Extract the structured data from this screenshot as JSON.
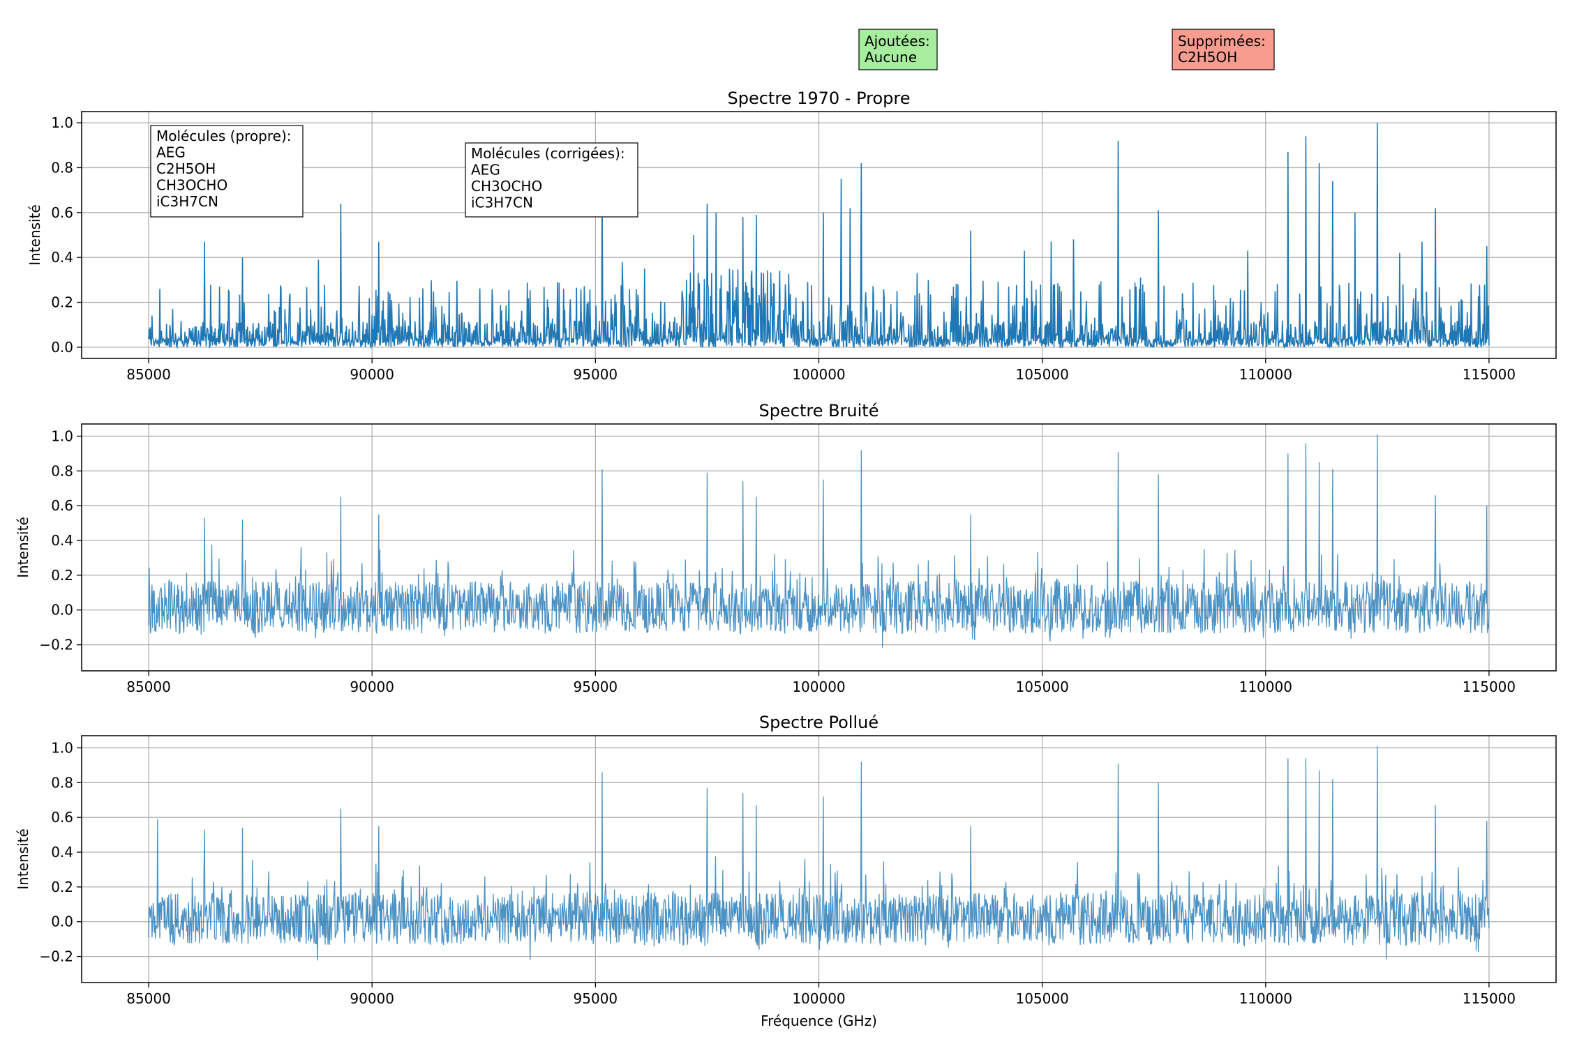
{
  "legend_boxes": [
    {
      "lines": [
        "Ajoutées:",
        "Aucune"
      ],
      "color": "#a6ee9e"
    },
    {
      "lines": [
        "Supprimées:",
        "C2H5OH"
      ],
      "color": "#f79c8f"
    }
  ],
  "chart_data": [
    {
      "type": "line",
      "title": "Spectre 1970 - Propre",
      "xlabel": "",
      "ylabel": "Intensité",
      "xlim": [
        83500,
        116500
      ],
      "ylim": [
        -0.05,
        1.05
      ],
      "xticks": [
        85000,
        90000,
        95000,
        100000,
        105000,
        110000,
        115000
      ],
      "yticks": [
        0.0,
        0.2,
        0.4,
        0.6,
        0.8,
        1.0
      ],
      "ytick_labels": [
        "0.0",
        "0.2",
        "0.4",
        "0.6",
        "0.8",
        "1.0"
      ],
      "grid": true,
      "series_color": "#1f77b4",
      "baseline": 0.0,
      "noise_amp": 0.0,
      "annotations": [
        {
          "lines": [
            "Molécules (propre):",
            "AEG",
            "C2H5OH",
            "CH3OCHO",
            "iC3H7CN"
          ]
        },
        {
          "lines": [
            "Molécules (corrigées):",
            "AEG",
            "CH3OCHO",
            "iC3H7CN"
          ]
        }
      ],
      "peaks": [
        [
          85250,
          0.26
        ],
        [
          86250,
          0.47
        ],
        [
          87100,
          0.4
        ],
        [
          88800,
          0.39
        ],
        [
          89300,
          0.64
        ],
        [
          90150,
          0.47
        ],
        [
          95150,
          0.74
        ],
        [
          95600,
          0.38
        ],
        [
          96100,
          0.35
        ],
        [
          97200,
          0.5
        ],
        [
          97500,
          0.64
        ],
        [
          97700,
          0.6
        ],
        [
          98300,
          0.58
        ],
        [
          98600,
          0.59
        ],
        [
          100100,
          0.6
        ],
        [
          100500,
          0.75
        ],
        [
          100700,
          0.62
        ],
        [
          100950,
          0.82
        ],
        [
          102200,
          0.33
        ],
        [
          103400,
          0.52
        ],
        [
          104600,
          0.43
        ],
        [
          105200,
          0.47
        ],
        [
          105700,
          0.48
        ],
        [
          106700,
          0.92
        ],
        [
          107200,
          0.31
        ],
        [
          107600,
          0.61
        ],
        [
          109600,
          0.43
        ],
        [
          110500,
          0.87
        ],
        [
          110900,
          0.94
        ],
        [
          111200,
          0.82
        ],
        [
          111500,
          0.74
        ],
        [
          112000,
          0.6
        ],
        [
          112500,
          1.0
        ],
        [
          113000,
          0.42
        ],
        [
          113500,
          0.47
        ],
        [
          113800,
          0.62
        ],
        [
          114400,
          0.21
        ],
        [
          114950,
          0.45
        ]
      ]
    },
    {
      "type": "line",
      "title": "Spectre Bruité",
      "xlabel": "",
      "ylabel": "Intensité",
      "xlim": [
        83500,
        116500
      ],
      "ylim": [
        -0.35,
        1.07
      ],
      "xticks": [
        85000,
        90000,
        95000,
        100000,
        105000,
        110000,
        115000
      ],
      "yticks": [
        -0.2,
        0.0,
        0.2,
        0.4,
        0.6,
        0.8,
        1.0
      ],
      "ytick_labels": [
        "−0.2",
        "0.0",
        "0.2",
        "0.4",
        "0.6",
        "0.8",
        "1.0"
      ],
      "grid": true,
      "series_color": "#1f77b4",
      "baseline": 0.0,
      "noise_amp": 0.15,
      "peaks": [
        [
          86250,
          0.53
        ],
        [
          87100,
          0.52
        ],
        [
          89300,
          0.65
        ],
        [
          90150,
          0.55
        ],
        [
          95150,
          0.81
        ],
        [
          97500,
          0.79
        ],
        [
          98300,
          0.74
        ],
        [
          98600,
          0.65
        ],
        [
          100100,
          0.75
        ],
        [
          100950,
          0.92
        ],
        [
          103400,
          0.55
        ],
        [
          106700,
          0.91
        ],
        [
          107600,
          0.78
        ],
        [
          110500,
          0.9
        ],
        [
          110900,
          0.96
        ],
        [
          111200,
          0.85
        ],
        [
          111500,
          0.81
        ],
        [
          112500,
          1.01
        ],
        [
          113800,
          0.66
        ],
        [
          114950,
          0.6
        ]
      ]
    },
    {
      "type": "line",
      "title": "Spectre Pollué",
      "xlabel": "Fréquence (GHz)",
      "ylabel": "Intensité",
      "xlim": [
        83500,
        116500
      ],
      "ylim": [
        -0.35,
        1.07
      ],
      "xticks": [
        85000,
        90000,
        95000,
        100000,
        105000,
        110000,
        115000
      ],
      "yticks": [
        -0.2,
        0.0,
        0.2,
        0.4,
        0.6,
        0.8,
        1.0
      ],
      "ytick_labels": [
        "−0.2",
        "0.0",
        "0.2",
        "0.4",
        "0.6",
        "0.8",
        "1.0"
      ],
      "grid": true,
      "series_color": "#1f77b4",
      "baseline": 0.0,
      "noise_amp": 0.15,
      "peaks": [
        [
          85200,
          0.59
        ],
        [
          86250,
          0.53
        ],
        [
          87100,
          0.54
        ],
        [
          89300,
          0.65
        ],
        [
          90150,
          0.55
        ],
        [
          95150,
          0.86
        ],
        [
          97500,
          0.77
        ],
        [
          98300,
          0.74
        ],
        [
          98600,
          0.67
        ],
        [
          100100,
          0.72
        ],
        [
          100950,
          0.92
        ],
        [
          103400,
          0.55
        ],
        [
          106700,
          0.91
        ],
        [
          107600,
          0.8
        ],
        [
          110500,
          0.94
        ],
        [
          110900,
          0.94
        ],
        [
          111200,
          0.87
        ],
        [
          111500,
          0.82
        ],
        [
          112500,
          1.01
        ],
        [
          113800,
          0.67
        ],
        [
          114950,
          0.58
        ]
      ]
    }
  ]
}
